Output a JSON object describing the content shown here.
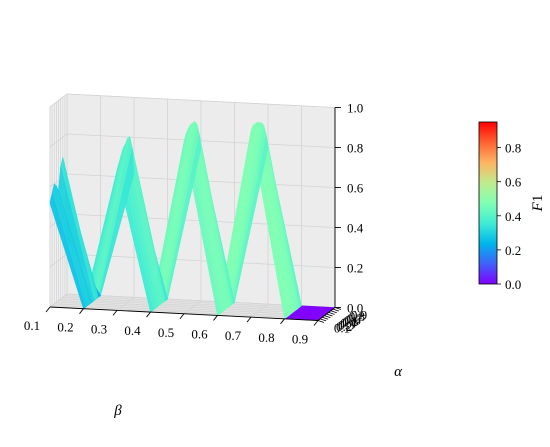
{
  "chart_data": {
    "type": "surface3d",
    "title": "",
    "xlabel": "β",
    "ylabel": "α",
    "zlabel": "",
    "beta": [
      0.1,
      0.2,
      0.3,
      0.4,
      0.5,
      0.6,
      0.7,
      0.8,
      0.9
    ],
    "alpha": [
      0.1,
      0.2,
      0.3,
      0.4,
      0.5,
      0.6,
      0.7,
      0.8,
      0.9
    ],
    "beta_ticks": [
      "0.1",
      "0.2",
      "0.3",
      "0.4",
      "0.5",
      "0.6",
      "0.7",
      "0.8",
      "0.9"
    ],
    "alpha_ticks": [
      "0.1",
      "0.2",
      "0.3",
      "0.4",
      "0.5",
      "0.6",
      "0.7",
      "0.8",
      "0.9"
    ],
    "z_ticks": [
      "0.0",
      "0.2",
      "0.4",
      "0.6",
      "0.8",
      "1.0"
    ],
    "zlim": [
      0,
      1
    ],
    "colormap": "rainbow",
    "grid": true,
    "colorbar": {
      "label": "F1",
      "ticks": [
        "0.0",
        "0.2",
        "0.4",
        "0.6",
        "0.8"
      ],
      "range": [
        0,
        0.95
      ]
    },
    "F1": [
      [
        0.52,
        0.56,
        0.6,
        0.58,
        0.55,
        0.66,
        0.7,
        0.6,
        0.28
      ],
      [
        0.0,
        0.0,
        0.0,
        0.0,
        0.0,
        0.0,
        0.0,
        0.0,
        0.0
      ],
      [
        0.7,
        0.73,
        0.76,
        0.79,
        0.8,
        0.82,
        0.82,
        0.76,
        0.62
      ],
      [
        0.0,
        0.0,
        0.0,
        0.0,
        0.0,
        0.0,
        0.0,
        0.0,
        0.0
      ],
      [
        0.86,
        0.89,
        0.91,
        0.92,
        0.92,
        0.92,
        0.9,
        0.85,
        0.76
      ],
      [
        0.0,
        0.0,
        0.0,
        0.0,
        0.0,
        0.0,
        0.0,
        0.0,
        0.0
      ],
      [
        0.93,
        0.95,
        0.95,
        0.95,
        0.94,
        0.93,
        0.91,
        0.86,
        0.78
      ],
      [
        0.0,
        0.0,
        0.0,
        0.0,
        0.0,
        0.0,
        0.0,
        0.0,
        0.0
      ],
      [
        0.0,
        0.0,
        0.0,
        0.0,
        0.0,
        0.0,
        0.0,
        0.0,
        0.0
      ]
    ]
  }
}
